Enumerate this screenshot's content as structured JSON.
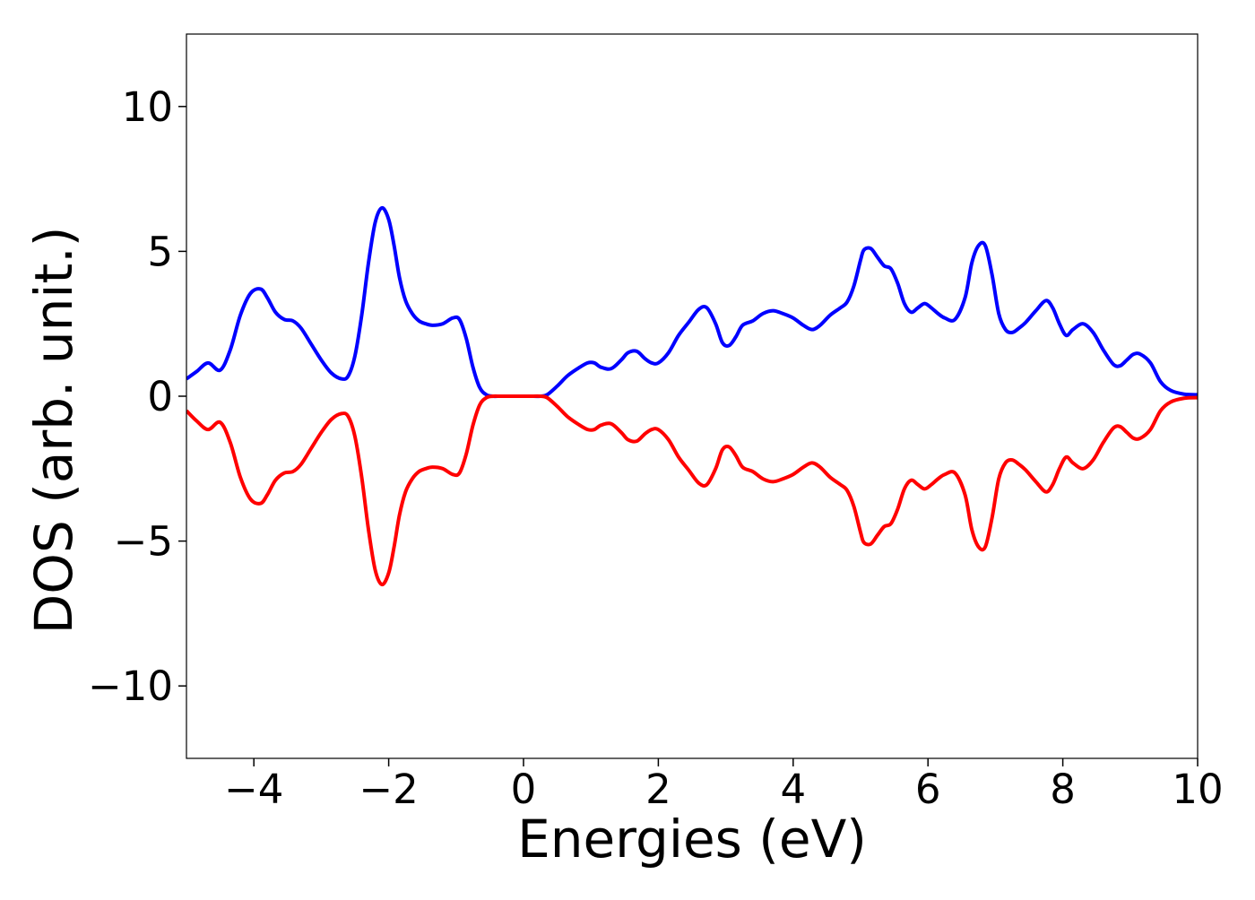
{
  "chart_data": {
    "type": "line",
    "title": "",
    "xlabel": "Energies (eV)",
    "ylabel": "DOS (arb. unit.)",
    "xlim": [
      -5,
      10
    ],
    "ylim": [
      -12.5,
      12.5
    ],
    "x_ticks": [
      -4,
      -2,
      0,
      2,
      4,
      6,
      8,
      10
    ],
    "y_ticks": [
      -10,
      -5,
      0,
      5,
      10
    ],
    "x_tick_labels": [
      "−4",
      "−2",
      "0",
      "2",
      "4",
      "6",
      "8",
      "10"
    ],
    "y_tick_labels": [
      "−10",
      "−5",
      "0",
      "5",
      "10"
    ],
    "grid": false,
    "legend": false,
    "series": [
      {
        "color": "#0000ff",
        "x": [
          -5.0,
          -4.85,
          -4.68,
          -4.5,
          -4.35,
          -4.2,
          -4.05,
          -3.9,
          -3.8,
          -3.68,
          -3.55,
          -3.42,
          -3.3,
          -3.15,
          -3.0,
          -2.85,
          -2.7,
          -2.6,
          -2.5,
          -2.4,
          -2.3,
          -2.2,
          -2.1,
          -2.0,
          -1.92,
          -1.84,
          -1.75,
          -1.65,
          -1.55,
          -1.45,
          -1.35,
          -1.2,
          -1.05,
          -0.95,
          -0.85,
          -0.75,
          -0.65,
          -0.55,
          -0.45,
          -0.35,
          -0.25,
          -0.1,
          0.0,
          0.1,
          0.25,
          0.35,
          0.5,
          0.65,
          0.8,
          0.95,
          1.05,
          1.15,
          1.3,
          1.45,
          1.55,
          1.68,
          1.8,
          1.9,
          2.0,
          2.15,
          2.3,
          2.45,
          2.6,
          2.72,
          2.85,
          2.95,
          3.05,
          3.15,
          3.25,
          3.4,
          3.55,
          3.7,
          3.85,
          4.0,
          4.15,
          4.28,
          4.4,
          4.55,
          4.7,
          4.8,
          4.9,
          5.0,
          5.05,
          5.15,
          5.25,
          5.35,
          5.45,
          5.55,
          5.65,
          5.75,
          5.85,
          5.95,
          6.05,
          6.15,
          6.25,
          6.4,
          6.55,
          6.65,
          6.75,
          6.85,
          6.95,
          7.05,
          7.15,
          7.25,
          7.35,
          7.45,
          7.6,
          7.75,
          7.85,
          7.95,
          8.05,
          8.15,
          8.3,
          8.45,
          8.6,
          8.75,
          8.85,
          8.95,
          9.05,
          9.15,
          9.3,
          9.45,
          9.6,
          9.8,
          10.0
        ],
        "values": [
          0.6,
          0.85,
          1.15,
          0.9,
          1.6,
          2.8,
          3.55,
          3.7,
          3.4,
          2.9,
          2.65,
          2.6,
          2.35,
          1.8,
          1.25,
          0.8,
          0.6,
          0.7,
          1.4,
          2.8,
          4.6,
          6.0,
          6.5,
          6.1,
          5.2,
          4.1,
          3.3,
          2.85,
          2.6,
          2.5,
          2.45,
          2.5,
          2.7,
          2.65,
          2.0,
          1.0,
          0.3,
          0.05,
          0.0,
          0.0,
          0.0,
          0.0,
          0.0,
          0.0,
          0.0,
          0.05,
          0.35,
          0.7,
          0.95,
          1.15,
          1.15,
          1.0,
          0.95,
          1.25,
          1.5,
          1.55,
          1.3,
          1.15,
          1.15,
          1.5,
          2.1,
          2.55,
          3.0,
          3.05,
          2.5,
          1.85,
          1.75,
          2.05,
          2.45,
          2.6,
          2.85,
          2.95,
          2.85,
          2.7,
          2.45,
          2.3,
          2.45,
          2.8,
          3.05,
          3.25,
          3.8,
          4.7,
          5.05,
          5.1,
          4.8,
          4.5,
          4.4,
          3.9,
          3.2,
          2.9,
          3.05,
          3.2,
          3.05,
          2.85,
          2.7,
          2.65,
          3.4,
          4.6,
          5.2,
          5.2,
          4.2,
          2.85,
          2.3,
          2.2,
          2.35,
          2.55,
          2.95,
          3.3,
          3.05,
          2.5,
          2.1,
          2.3,
          2.5,
          2.2,
          1.6,
          1.1,
          1.05,
          1.25,
          1.45,
          1.45,
          1.15,
          0.5,
          0.2,
          0.07,
          0.05
        ]
      },
      {
        "color": "#ff0000",
        "x": [
          -5.0,
          -4.85,
          -4.68,
          -4.5,
          -4.35,
          -4.2,
          -4.05,
          -3.9,
          -3.8,
          -3.68,
          -3.55,
          -3.42,
          -3.3,
          -3.15,
          -3.0,
          -2.85,
          -2.7,
          -2.6,
          -2.5,
          -2.4,
          -2.3,
          -2.2,
          -2.1,
          -2.0,
          -1.92,
          -1.84,
          -1.75,
          -1.65,
          -1.55,
          -1.45,
          -1.35,
          -1.2,
          -1.05,
          -0.95,
          -0.85,
          -0.75,
          -0.65,
          -0.55,
          -0.45,
          -0.35,
          -0.25,
          -0.1,
          0.0,
          0.1,
          0.25,
          0.35,
          0.5,
          0.65,
          0.8,
          0.95,
          1.05,
          1.15,
          1.3,
          1.45,
          1.55,
          1.68,
          1.8,
          1.9,
          2.0,
          2.15,
          2.3,
          2.45,
          2.6,
          2.72,
          2.85,
          2.95,
          3.05,
          3.15,
          3.25,
          3.4,
          3.55,
          3.7,
          3.85,
          4.0,
          4.15,
          4.28,
          4.4,
          4.55,
          4.7,
          4.8,
          4.9,
          5.0,
          5.05,
          5.15,
          5.25,
          5.35,
          5.45,
          5.55,
          5.65,
          5.75,
          5.85,
          5.95,
          6.05,
          6.15,
          6.25,
          6.4,
          6.55,
          6.65,
          6.75,
          6.85,
          6.95,
          7.05,
          7.15,
          7.25,
          7.35,
          7.45,
          7.6,
          7.75,
          7.85,
          7.95,
          8.05,
          8.15,
          8.3,
          8.45,
          8.6,
          8.75,
          8.85,
          8.95,
          9.05,
          9.15,
          9.3,
          9.45,
          9.6,
          9.8,
          10.0
        ],
        "values": [
          -0.5,
          -0.85,
          -1.15,
          -0.9,
          -1.6,
          -2.8,
          -3.55,
          -3.7,
          -3.4,
          -2.9,
          -2.65,
          -2.6,
          -2.35,
          -1.8,
          -1.25,
          -0.8,
          -0.6,
          -0.7,
          -1.4,
          -2.8,
          -4.6,
          -6.0,
          -6.5,
          -6.1,
          -5.2,
          -4.1,
          -3.3,
          -2.85,
          -2.6,
          -2.5,
          -2.45,
          -2.5,
          -2.7,
          -2.65,
          -2.0,
          -1.0,
          -0.3,
          -0.05,
          0.0,
          0.0,
          0.0,
          0.0,
          0.0,
          0.0,
          0.0,
          -0.05,
          -0.35,
          -0.7,
          -0.95,
          -1.15,
          -1.15,
          -1.0,
          -0.95,
          -1.25,
          -1.5,
          -1.55,
          -1.3,
          -1.15,
          -1.15,
          -1.5,
          -2.1,
          -2.55,
          -3.0,
          -3.05,
          -2.5,
          -1.85,
          -1.75,
          -2.05,
          -2.45,
          -2.6,
          -2.85,
          -2.95,
          -2.85,
          -2.7,
          -2.45,
          -2.3,
          -2.45,
          -2.8,
          -3.05,
          -3.25,
          -3.8,
          -4.7,
          -5.05,
          -5.1,
          -4.8,
          -4.5,
          -4.4,
          -3.9,
          -3.2,
          -2.9,
          -3.05,
          -3.2,
          -3.05,
          -2.85,
          -2.7,
          -2.65,
          -3.4,
          -4.6,
          -5.2,
          -5.2,
          -4.2,
          -2.85,
          -2.3,
          -2.2,
          -2.35,
          -2.55,
          -2.95,
          -3.3,
          -3.05,
          -2.5,
          -2.1,
          -2.3,
          -2.5,
          -2.2,
          -1.6,
          -1.1,
          -1.05,
          -1.25,
          -1.45,
          -1.45,
          -1.15,
          -0.5,
          -0.2,
          -0.07,
          -0.05
        ]
      }
    ]
  }
}
